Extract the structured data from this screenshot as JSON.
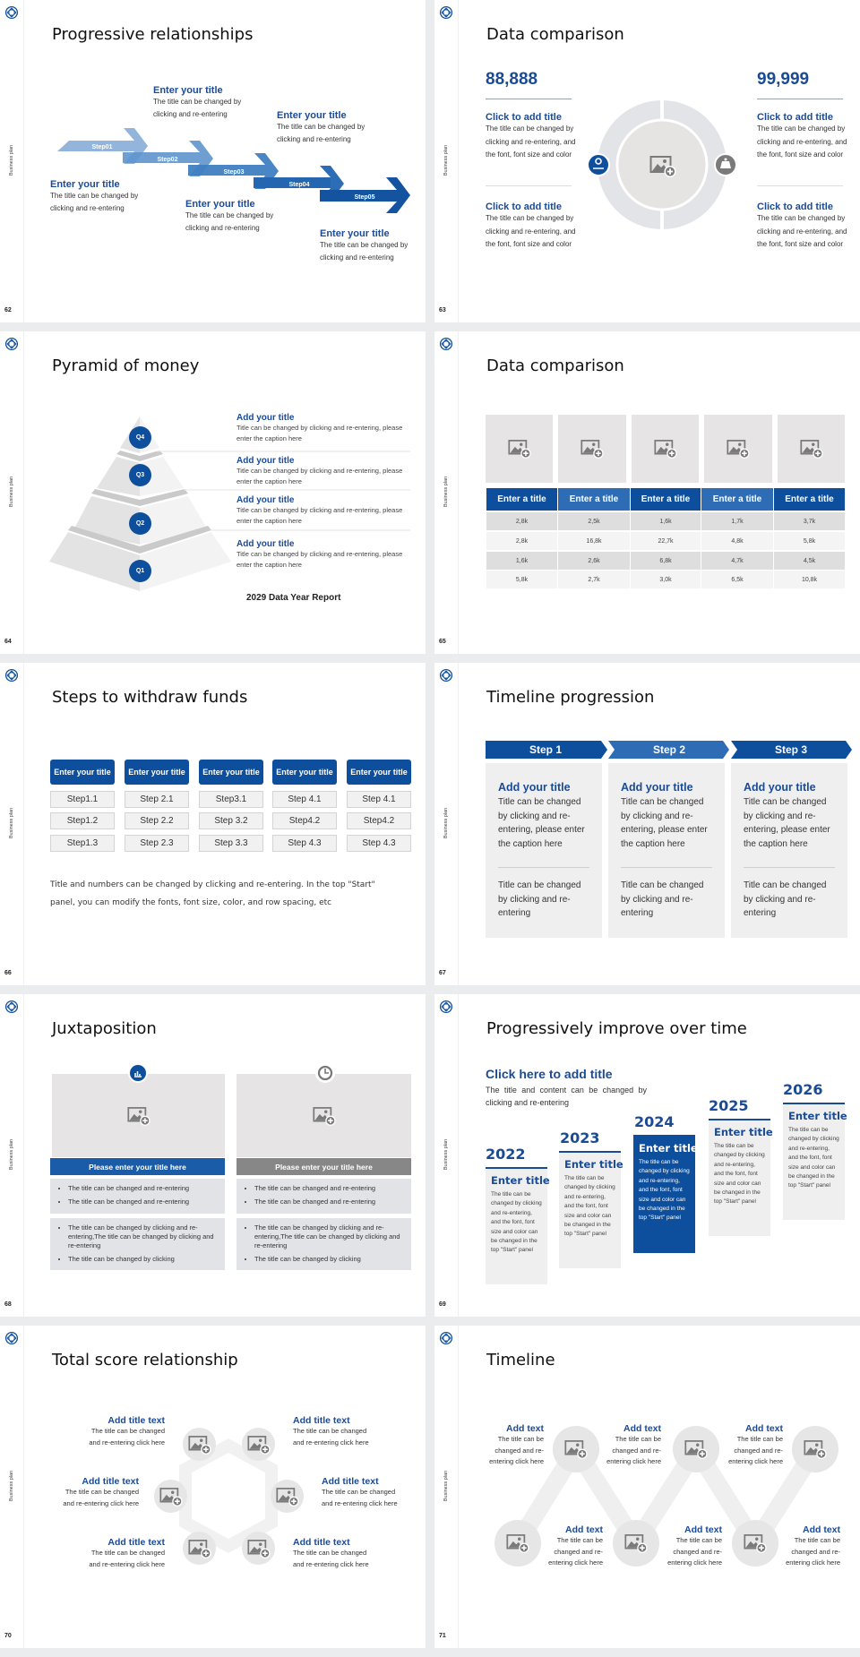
{
  "common": {
    "side_label": "Business plan",
    "brand_color": "#0d4f9c",
    "logo_icon": "knot-logo"
  },
  "s62": {
    "title": "Progressive relationships",
    "page": "62",
    "steps": [
      "Step01",
      "Step02",
      "Step03",
      "Step04",
      "Step05"
    ],
    "items": [
      {
        "title": "Enter your title",
        "desc": "The title can be changed by clicking and re-entering"
      },
      {
        "title": "Enter your title",
        "desc": "The title can be changed by clicking and re-entering"
      },
      {
        "title": "Enter your title",
        "desc": "The title can be changed by clicking and re-entering"
      },
      {
        "title": "Enter your title",
        "desc": "The title can be changed by clicking and re-entering"
      },
      {
        "title": "Enter your title",
        "desc": "The title can be changed by clicking and re-entering"
      }
    ]
  },
  "s63": {
    "title": "Data comparison",
    "page": "63",
    "left": {
      "value": "88,888",
      "items": [
        {
          "title": "Click to add title",
          "desc": "The title can be changed by clicking and re-entering, and the font, font size and color"
        },
        {
          "title": "Click to add title",
          "desc": "The title can be changed by clicking and re-entering, and the font, font size and color"
        }
      ]
    },
    "right": {
      "value": "99,999",
      "items": [
        {
          "title": "Click to add title",
          "desc": "The title can be changed by clicking and re-entering, and the font, font size and color"
        },
        {
          "title": "Click to add title",
          "desc": "The title can be changed by clicking and re-entering, and the font, font size and color"
        }
      ]
    }
  },
  "s64": {
    "title": "Pyramid of money",
    "page": "64",
    "levels": [
      "Q4",
      "Q3",
      "Q2",
      "Q1"
    ],
    "items": [
      {
        "title": "Add your title",
        "desc": "Title can be changed by clicking and re-entering, please enter the caption here"
      },
      {
        "title": "Add your title",
        "desc": "Title can be changed by clicking and re-entering, please enter the caption here"
      },
      {
        "title": "Add your title",
        "desc": "Title can be changed by clicking and re-entering, please enter the caption here"
      },
      {
        "title": "Add your title",
        "desc": "Title can be changed by clicking and re-entering, please enter the caption here"
      }
    ],
    "report": "2029 Data Year Report"
  },
  "s65": {
    "title": "Data comparison",
    "page": "65",
    "headers": [
      "Enter a title",
      "Enter a title",
      "Enter a title",
      "Enter a title",
      "Enter a title"
    ],
    "rows": [
      [
        "2,8k",
        "2,5k",
        "1,6k",
        "1,7k",
        "3,7k"
      ],
      [
        "2,8k",
        "16,8k",
        "22,7k",
        "4,8k",
        "5,8k"
      ],
      [
        "1,6k",
        "2,6k",
        "6,8k",
        "4,7k",
        "4,5k"
      ],
      [
        "5,8k",
        "2,7k",
        "3,0k",
        "6,5k",
        "10,8k"
      ]
    ]
  },
  "s66": {
    "title": "Steps to withdraw funds",
    "page": "66",
    "columns": [
      {
        "header": "Enter your title",
        "steps": [
          "Step1.1",
          "Step1.2",
          "Step1.3"
        ]
      },
      {
        "header": "Enter your title",
        "steps": [
          "Step 2.1",
          "Step 2.2",
          "Step 2.3"
        ]
      },
      {
        "header": "Enter your title",
        "steps": [
          "Step3.1",
          "Step 3.2",
          "Step 3.3"
        ]
      },
      {
        "header": "Enter your title",
        "steps": [
          "Step 4.1",
          "Step4.2",
          "Step 4.3"
        ]
      },
      {
        "header": "Enter your title",
        "steps": [
          "Step 4.1",
          "Step4.2",
          "Step 4.3"
        ]
      }
    ],
    "note": "Title and numbers can be changed by clicking and re-entering. In the top \"Start\" panel, you can modify the fonts, font size, color, and row spacing, etc"
  },
  "s67": {
    "title": "Timeline progression",
    "page": "67",
    "steps": [
      {
        "label": "Step 1",
        "title": "Add your title",
        "desc": "Title can be changed by clicking and re-entering, please enter the caption here",
        "desc2": "Title can be changed by clicking and re-entering"
      },
      {
        "label": "Step 2",
        "title": "Add your title",
        "desc": "Title can be changed by clicking and re-entering, please enter the caption here",
        "desc2": "Title can be changed by clicking and re-entering"
      },
      {
        "label": "Step 3",
        "title": "Add your title",
        "desc": "Title can be changed by clicking and re-entering, please enter the caption here",
        "desc2": "Title can be changed by clicking and re-entering"
      }
    ]
  },
  "s68": {
    "title": "Juxtaposition",
    "page": "68",
    "panels": [
      {
        "icon": "bar-chart-icon",
        "title": "Please enter your title here",
        "bullets1": [
          "The title can be changed and re-entering",
          "The title can be changed and re-entering"
        ],
        "bullets2": [
          "The title can be changed by clicking and re-entering,The title can be changed by clicking and re-entering",
          "The title can be changed by clicking"
        ]
      },
      {
        "icon": "clock-icon",
        "title": "Please enter your title here",
        "bullets1": [
          "The title can be changed and re-entering",
          "The title can be changed and re-entering"
        ],
        "bullets2": [
          "The title can be changed by clicking and re-entering,The title can be changed by clicking and re-entering",
          "The title can be changed by clicking"
        ]
      }
    ]
  },
  "s69": {
    "title": "Progressively improve over time",
    "page": "69",
    "heading": "Click here to add title",
    "desc": "The title and content can be changed by clicking and re-entering",
    "cards": [
      {
        "year": "2022",
        "title": "Enter title",
        "desc": "The title can be changed by clicking and re-entering, and the font, font size and color can be changed in the top \"Start\" panel"
      },
      {
        "year": "2023",
        "title": "Enter title",
        "desc": "The title can be changed by clicking and re-entering, and the font, font size and color can be changed in the top \"Start\" panel"
      },
      {
        "year": "2024",
        "title": "Enter title",
        "desc": "The title can be changed by clicking and re-entering, and the font, font size and color can be changed in the top \"Start\" panel"
      },
      {
        "year": "2025",
        "title": "Enter title",
        "desc": "The title can be changed by clicking and re-entering, and the font, font size and color can be changed in the top \"Start\" panel"
      },
      {
        "year": "2026",
        "title": "Enter title",
        "desc": "The title can be changed by clicking and re-entering, and the font, font size and color can be changed in the top \"Start\" panel"
      }
    ]
  },
  "s70": {
    "title": "Total score relationship",
    "page": "70",
    "items": [
      {
        "title": "Add title text",
        "desc": "The title can be changed and re-entering click here"
      },
      {
        "title": "Add title text",
        "desc": "The title can be changed and re-entering click here"
      },
      {
        "title": "Add title text",
        "desc": "The title can be changed and re-entering click here"
      },
      {
        "title": "Add title text",
        "desc": "The title can be changed and re-entering click here"
      },
      {
        "title": "Add title text",
        "desc": "The title can be changed and re-entering click here"
      },
      {
        "title": "Add title text",
        "desc": "The title can be changed and re-entering click here"
      }
    ]
  },
  "s71": {
    "title": "Timeline",
    "page": "71",
    "items": [
      {
        "title": "Add text",
        "desc": "The title can be changed and re-entering click here"
      },
      {
        "title": "Add text",
        "desc": "The title can be changed and re-entering click here"
      },
      {
        "title": "Add text",
        "desc": "The title can be changed and re-entering click here"
      },
      {
        "title": "Add text",
        "desc": "The title can be changed and re-entering click here"
      },
      {
        "title": "Add text",
        "desc": "The title can be changed and re-entering click here"
      },
      {
        "title": "Add text",
        "desc": "The title can be changed and re-entering click here"
      }
    ]
  }
}
